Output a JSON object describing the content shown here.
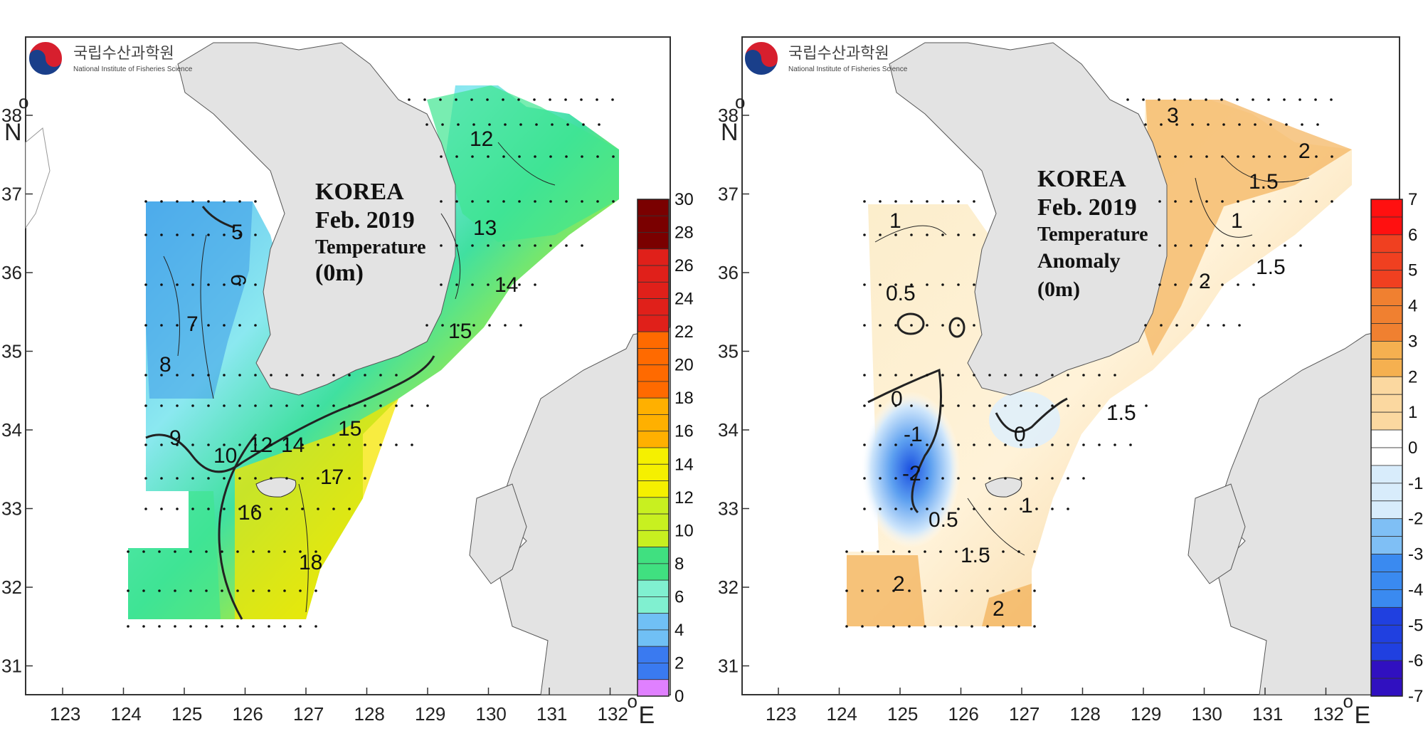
{
  "logo": {
    "korean": "국립수산과학원",
    "english": "National Institute of Fisheries Science"
  },
  "left_map": {
    "title_lines": [
      "KOREA",
      "Feb. 2019",
      "Temperature",
      "(0m)"
    ],
    "colorbar_labels": [
      "30",
      "28",
      "26",
      "24",
      "22",
      "20",
      "18",
      "16",
      "14",
      "12",
      "10",
      "8",
      "6",
      "4",
      "2",
      "0"
    ],
    "contour_labels": [
      "5",
      "6",
      "7",
      "8",
      "9",
      "10",
      "12",
      "14",
      "15",
      "16",
      "17",
      "18",
      "12",
      "13",
      "14",
      "15"
    ]
  },
  "right_map": {
    "title_lines": [
      "KOREA",
      "Feb. 2019",
      "Temperature",
      "Anomaly",
      "(0m)"
    ],
    "colorbar_labels": [
      "7",
      "6",
      "5",
      "4",
      "3",
      "2",
      "1",
      "0",
      "-1",
      "-2",
      "-3",
      "-4",
      "-5",
      "-6",
      "-7"
    ],
    "contour_labels": [
      "3",
      "2",
      "1.5",
      "1",
      "1.5",
      "2",
      "1",
      "0.5",
      "0",
      "-1",
      "-2",
      "0.5",
      "1",
      "1.5",
      "2",
      "2",
      "1.5",
      "0"
    ]
  },
  "axes": {
    "x_ticks": [
      "123",
      "124",
      "125",
      "126",
      "127",
      "128",
      "129",
      "130",
      "131",
      "132"
    ],
    "y_ticks": [
      "38",
      "37",
      "36",
      "35",
      "34",
      "33",
      "32",
      "31"
    ],
    "x_unit": "E",
    "y_unit": "N",
    "degree": "o"
  },
  "colors": {
    "land": "#e3e3e3",
    "left_cold": "#2e7ee8",
    "left_warm": "#f2e600",
    "right_warm": "#f0a040",
    "right_cold": "#1a4fe0"
  }
}
